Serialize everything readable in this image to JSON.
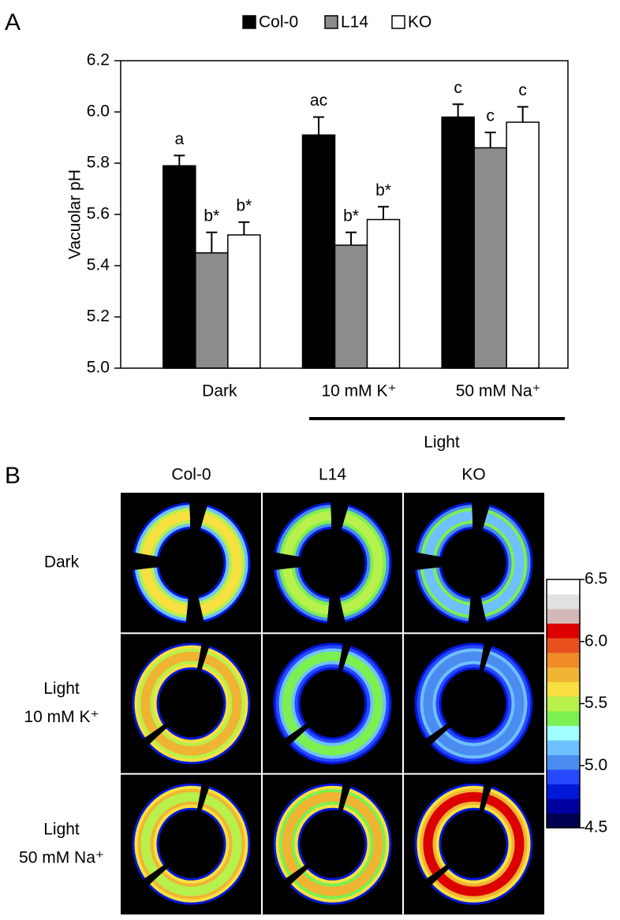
{
  "panel_labels": [
    "A",
    "B"
  ],
  "chart_data": {
    "type": "bar",
    "ylabel": "Vacuolar pH",
    "legend": "top",
    "group_label": "Light",
    "categories": [
      "Dark",
      "10 mM K⁺",
      "50 mM Na⁺"
    ],
    "series": [
      {
        "name": "Col-0",
        "color": "#000000",
        "values": [
          5.79,
          5.91,
          5.98
        ],
        "errors": [
          0.04,
          0.07,
          0.05
        ],
        "letters": [
          "a",
          "ac",
          "c"
        ]
      },
      {
        "name": "L14",
        "color": "#8c8c8c",
        "values": [
          5.45,
          5.48,
          5.86
        ],
        "errors": [
          0.08,
          0.05,
          0.06
        ],
        "letters": [
          "b*",
          "b*",
          "c"
        ]
      },
      {
        "name": "KO",
        "color": "#ffffff",
        "values": [
          5.52,
          5.58,
          5.96
        ],
        "errors": [
          0.05,
          0.05,
          0.06
        ],
        "letters": [
          "b*",
          "b*",
          "c"
        ]
      }
    ],
    "ylim": [
      5.0,
      6.2
    ],
    "yticks": [
      {
        "value": 5.0,
        "label": "5.0"
      },
      {
        "value": 5.2,
        "label": "5.2"
      },
      {
        "value": 5.4,
        "label": "5.4"
      },
      {
        "value": 5.6,
        "label": "5.6"
      },
      {
        "value": 5.8,
        "label": "5.8"
      },
      {
        "value": 6.0,
        "label": "6.0"
      },
      {
        "value": 6.2,
        "label": "6.2"
      }
    ]
  },
  "image_panel": {
    "column_labels": [
      "Col-0",
      "L14",
      "KO"
    ],
    "row_labels": [
      [
        "Dark"
      ],
      [
        "Light",
        "10 mM K⁺"
      ],
      [
        "Light",
        "50 mM Na⁺"
      ]
    ],
    "colorbar": {
      "lim": [
        4.5,
        6.5
      ],
      "ticks": [
        {
          "value": 6.5,
          "label": "6.5"
        },
        {
          "value": 6.0,
          "label": "6.0"
        },
        {
          "value": 5.5,
          "label": "5.5"
        },
        {
          "value": 5.0,
          "label": "5.0"
        },
        {
          "value": 4.5,
          "label": "4.5"
        }
      ],
      "colors": [
        "#000050",
        "#0000a0",
        "#0018d8",
        "#2848ff",
        "#4a8cf0",
        "#6ec0ff",
        "#a0ffff",
        "#7cf050",
        "#b8f04c",
        "#f8e040",
        "#f0b432",
        "#f08c28",
        "#e8501e",
        "#dc0000",
        "#d4b8b8",
        "#e2e2e2",
        "#ffffff"
      ]
    }
  }
}
